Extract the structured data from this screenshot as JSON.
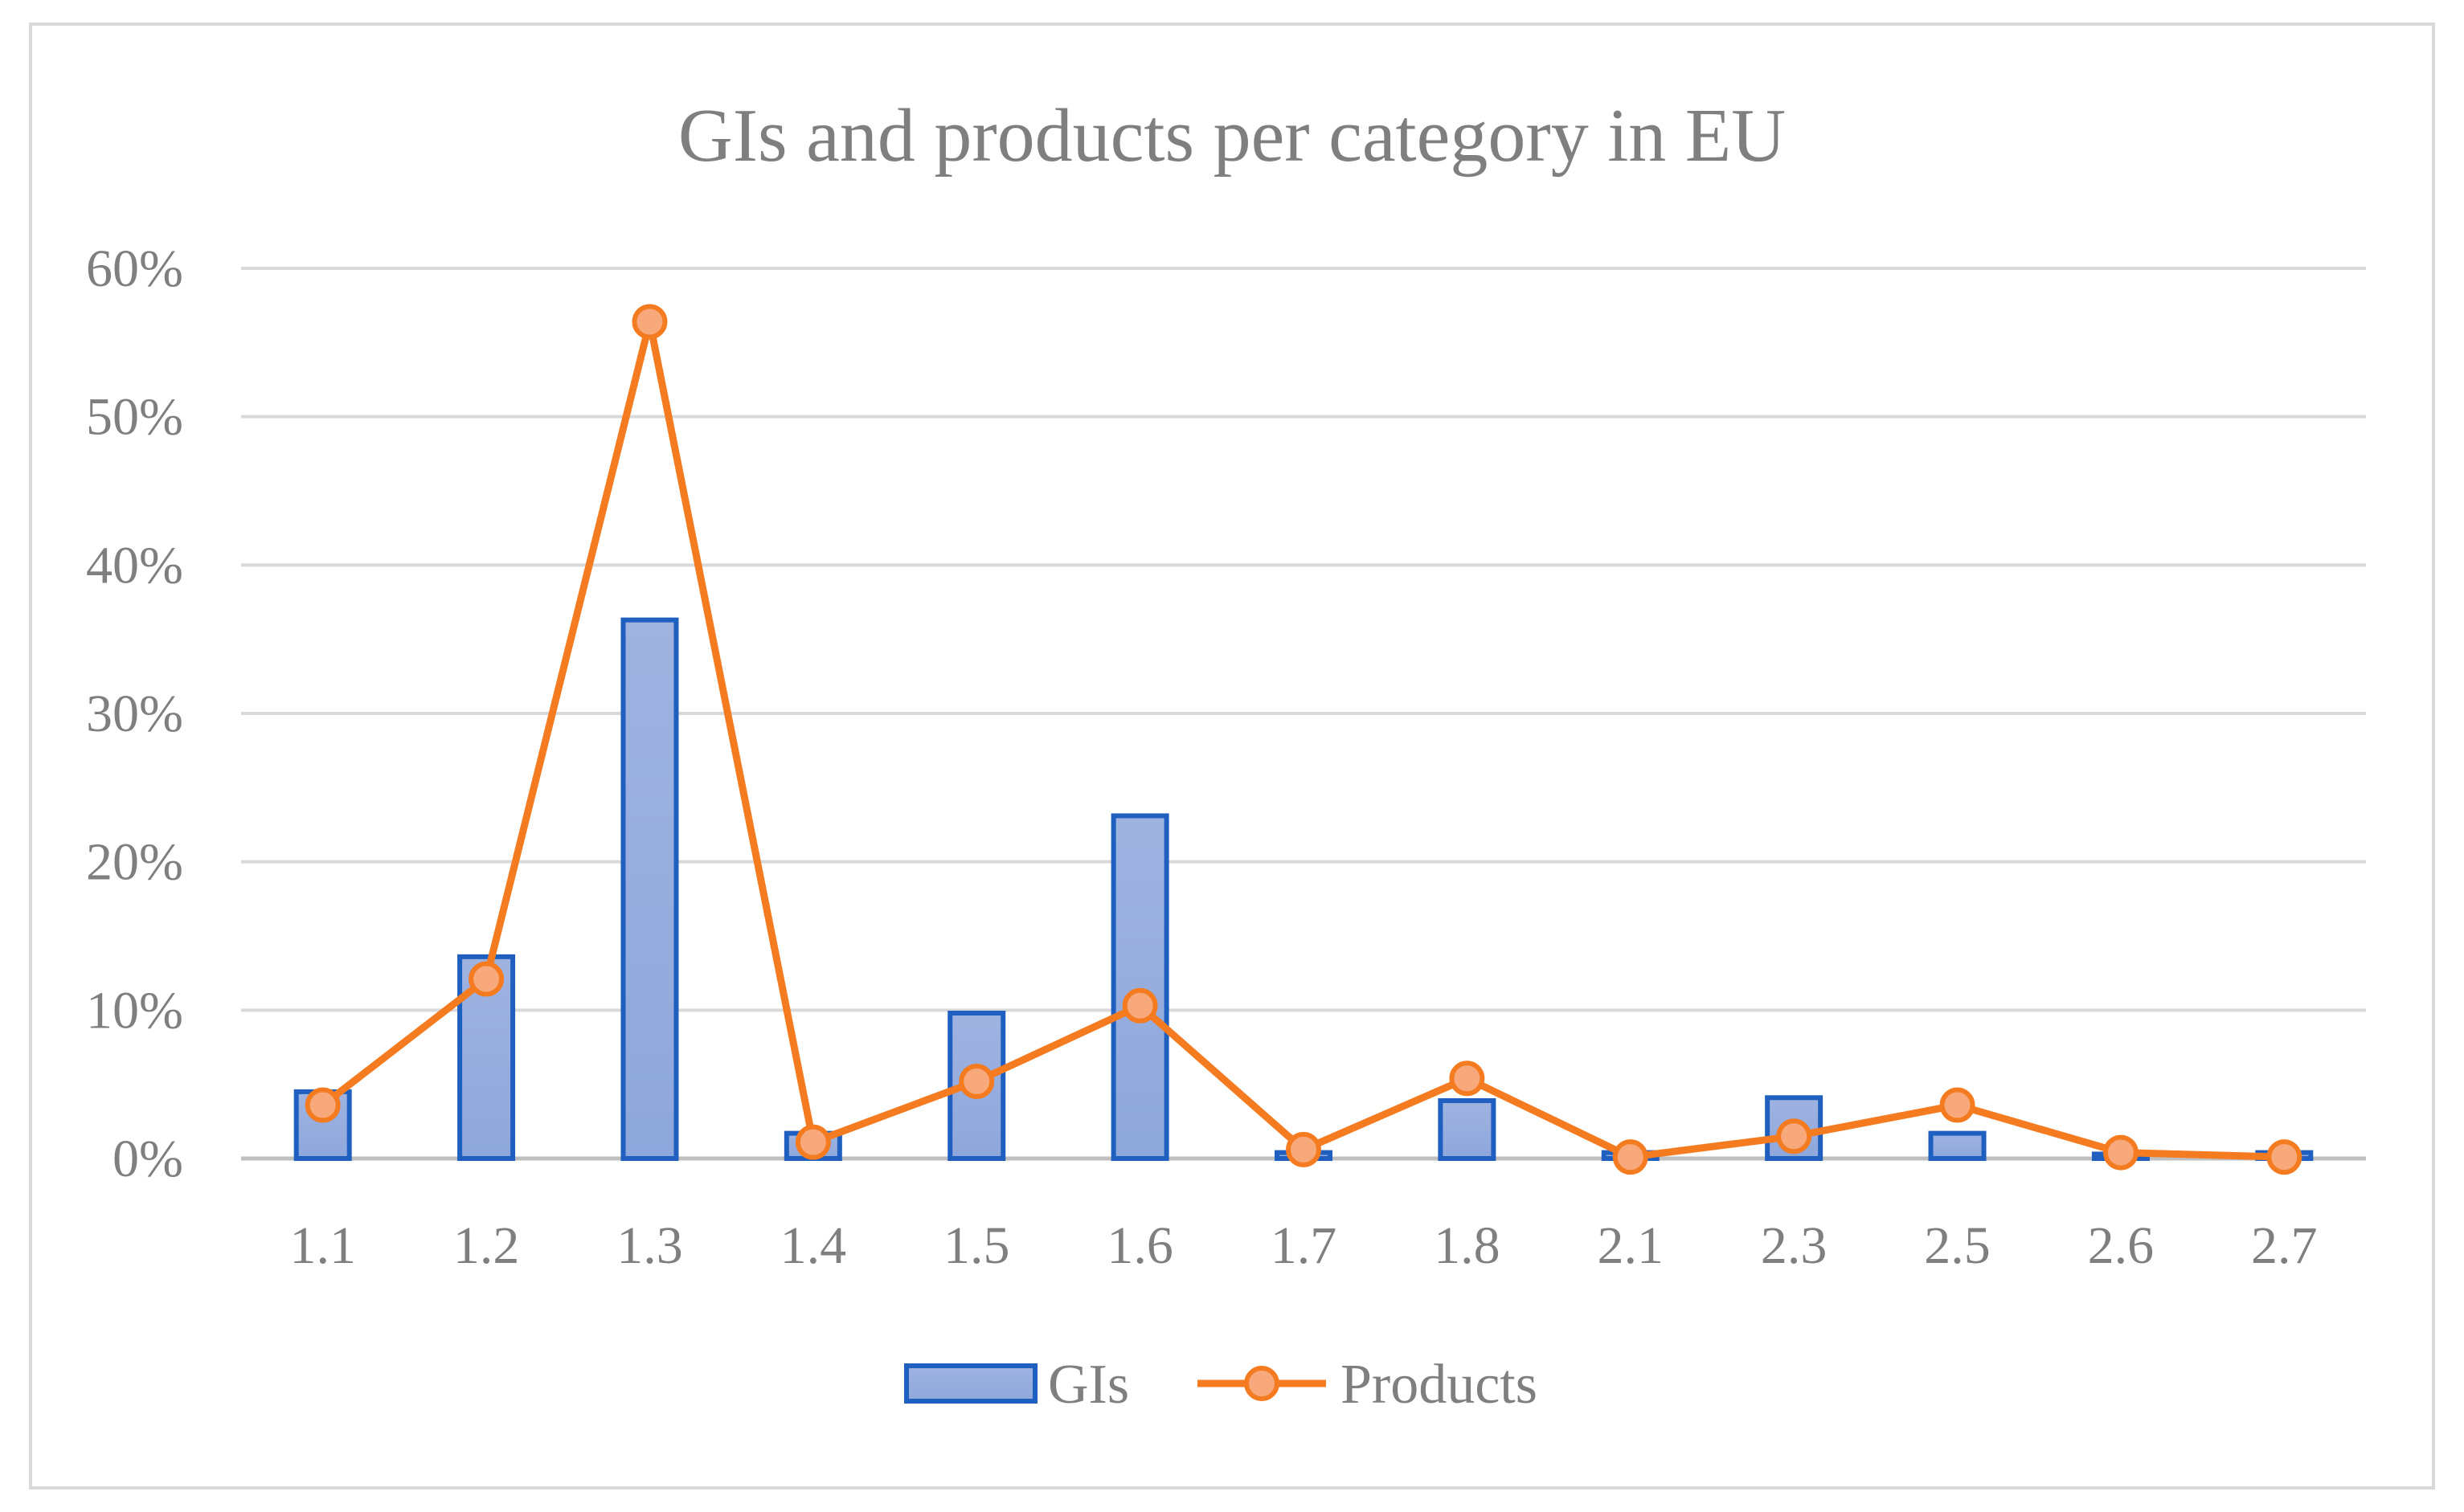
{
  "chart_data": {
    "type": "bar",
    "title": "GIs and products per category in EU",
    "xlabel": "",
    "ylabel": "",
    "categories": [
      "1.1",
      "1.2",
      "1.3",
      "1.4",
      "1.5",
      "1.6",
      "1.7",
      "1.8",
      "2.1",
      "2.3",
      "2.5",
      "2.6",
      "2.7"
    ],
    "ylim": [
      0,
      60
    ],
    "yticks": [
      "0%",
      "10%",
      "20%",
      "30%",
      "40%",
      "50%",
      "60%"
    ],
    "ytick_values": [
      0,
      10,
      20,
      30,
      40,
      50,
      60
    ],
    "grid": true,
    "legend_placement": "bottom",
    "series": [
      {
        "name": "GIs",
        "type": "bar",
        "color": "#4472c4",
        "values": [
          4.5,
          13.6,
          36.3,
          1.7,
          9.8,
          23.1,
          0.4,
          3.9,
          0.4,
          4.1,
          1.7,
          0.3,
          0.4
        ]
      },
      {
        "name": "Products",
        "type": "line",
        "color": "#f47b20",
        "values": [
          3.6,
          12.1,
          56.4,
          1.1,
          5.2,
          10.3,
          0.6,
          5.4,
          0.1,
          1.5,
          3.6,
          0.4,
          0.1
        ]
      }
    ]
  }
}
